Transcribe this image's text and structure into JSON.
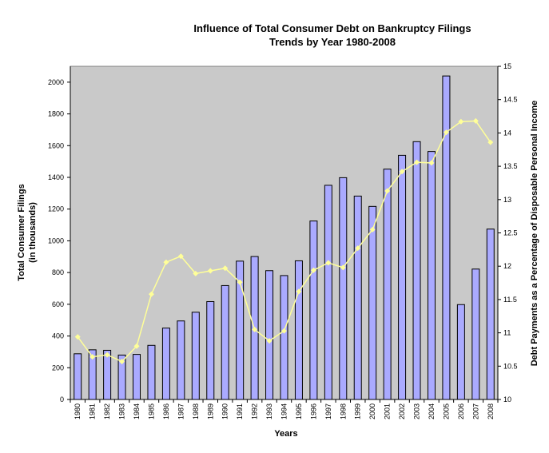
{
  "chart_data": {
    "type": "bar+line",
    "title": "Influence of Total Consumer Debt on Bankruptcy Filings",
    "subtitle": "Trends by Year 1980-2008",
    "xlabel": "Years",
    "ylabel_lines": [
      "Total Consumer Filings",
      "(in thousands)"
    ],
    "y2label": "Debt Payments as a Percentage of Disposable Personal Income",
    "categories": [
      "1980",
      "1981",
      "1982",
      "1983",
      "1984",
      "1985",
      "1986",
      "1987",
      "1988",
      "1989",
      "1990",
      "1991",
      "1992",
      "1993",
      "1994",
      "1995",
      "1996",
      "1997",
      "1998",
      "1999",
      "2000",
      "2001",
      "2002",
      "2003",
      "2004",
      "2005",
      "2006",
      "2007",
      "2008"
    ],
    "series": [
      {
        "name": "Total Consumer Filings (in thousands)",
        "type": "bar",
        "axis": "left",
        "color": "#aaaaff",
        "values": [
          288,
          313,
          310,
          280,
          284,
          341,
          450,
          495,
          550,
          617,
          718,
          872,
          901,
          812,
          781,
          874,
          1125,
          1350,
          1398,
          1282,
          1217,
          1452,
          1539,
          1625,
          1563,
          2039,
          598,
          822,
          1074
        ]
      },
      {
        "name": "Debt Payments as a Percentage of Disposable Personal Income",
        "type": "line",
        "axis": "right",
        "color": "#ffff99",
        "values": [
          10.94,
          10.64,
          10.67,
          10.57,
          10.8,
          11.58,
          12.06,
          12.15,
          11.89,
          11.93,
          11.97,
          11.76,
          11.05,
          10.88,
          11.03,
          11.62,
          11.94,
          12.05,
          11.98,
          12.27,
          12.55,
          13.13,
          13.42,
          13.56,
          13.55,
          14.01,
          14.17,
          14.18,
          13.86
        ]
      }
    ],
    "ylim": [
      0,
      2100
    ],
    "yticks": [
      "0",
      "200",
      "400",
      "600",
      "800",
      "1000",
      "1200",
      "1400",
      "1600",
      "1800",
      "2000"
    ],
    "y2lim": [
      10,
      15
    ],
    "y2ticks": [
      "10",
      "10.5",
      "11",
      "11.5",
      "12",
      "12.5",
      "13",
      "13.5",
      "14",
      "14.5",
      "15"
    ],
    "plot_background": "#c0c0c0",
    "grid": false,
    "legend": "none"
  }
}
